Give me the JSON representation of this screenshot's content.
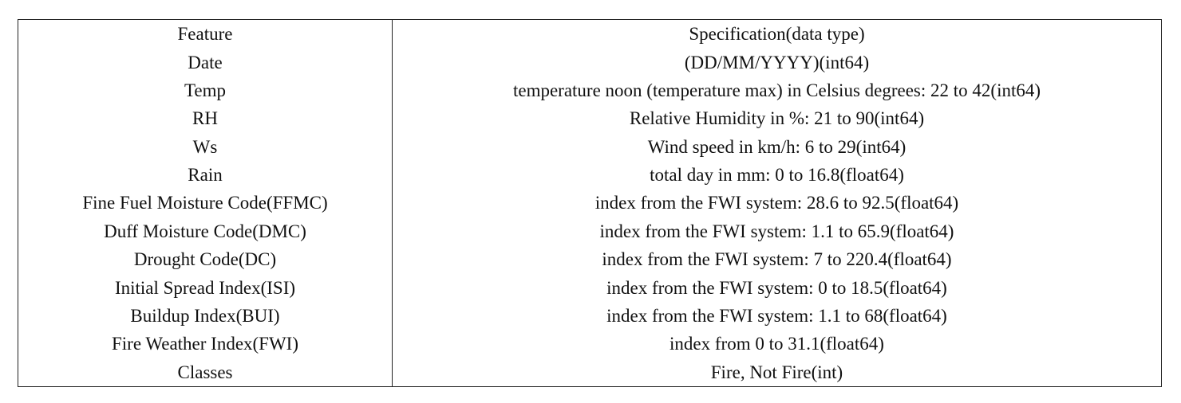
{
  "table": {
    "header": {
      "feature": "Feature",
      "spec": "Specification(data type)"
    },
    "rows": [
      {
        "feature": "Date",
        "spec": "(DD/MM/YYYY)(int64)"
      },
      {
        "feature": "Temp",
        "spec": "temperature noon (temperature max) in Celsius degrees: 22 to 42(int64)"
      },
      {
        "feature": "RH",
        "spec": "Relative Humidity in %: 21 to 90(int64)"
      },
      {
        "feature": "Ws",
        "spec": "Wind speed in km/h: 6 to 29(int64)"
      },
      {
        "feature": "Rain",
        "spec": "total day in mm: 0 to 16.8(float64)"
      },
      {
        "feature": "Fine Fuel Moisture Code(FFMC)",
        "spec": "index from the FWI system: 28.6 to 92.5(float64)"
      },
      {
        "feature": "Duff Moisture Code(DMC)",
        "spec": "index from the FWI system: 1.1 to 65.9(float64)"
      },
      {
        "feature": "Drought Code(DC)",
        "spec": "index from the FWI system: 7 to 220.4(float64)"
      },
      {
        "feature": "Initial Spread Index(ISI)",
        "spec": "index from the FWI system: 0 to 18.5(float64)"
      },
      {
        "feature": "Buildup Index(BUI)",
        "spec": "index from the FWI system: 1.1 to 68(float64)"
      },
      {
        "feature": "Fire Weather Index(FWI)",
        "spec": "index from 0 to 31.1(float64)"
      },
      {
        "feature": "Classes",
        "spec": "Fire, Not Fire(int)"
      }
    ]
  }
}
